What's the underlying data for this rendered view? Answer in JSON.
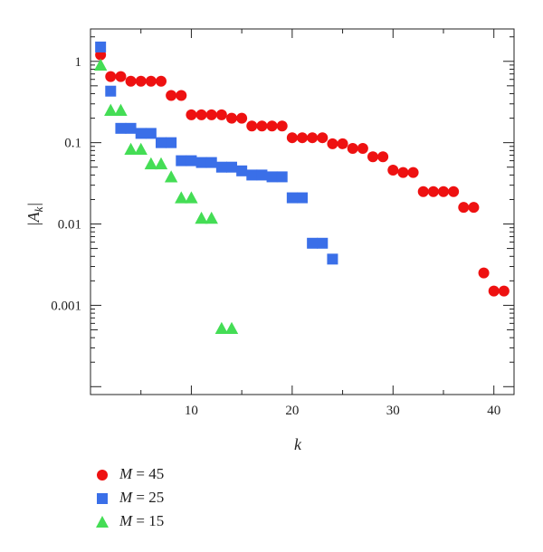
{
  "chart_data": {
    "type": "scatter",
    "xlabel": "k",
    "ylabel": "|A_k|",
    "xscale": "linear",
    "yscale": "log",
    "xlim": [
      0,
      42
    ],
    "ylim": [
      8e-05,
      2.5
    ],
    "x_ticks": [
      10,
      20,
      30,
      40
    ],
    "y_ticks": [
      0.001,
      0.01,
      0.1,
      1
    ],
    "y_tick_labels": [
      "0.001",
      "0.01",
      "0.1",
      "1"
    ],
    "grid": false,
    "legend_position": "bottom-left, below plot",
    "series": [
      {
        "name": "M = 45",
        "var": "M",
        "eq": " = ",
        "num": "45",
        "marker": "circle",
        "color": "#ee1111",
        "points": [
          [
            1,
            1.2
          ],
          [
            2,
            0.65
          ],
          [
            3,
            0.65
          ],
          [
            4,
            0.57
          ],
          [
            5,
            0.57
          ],
          [
            6,
            0.57
          ],
          [
            7,
            0.57
          ],
          [
            8,
            0.38
          ],
          [
            9,
            0.38
          ],
          [
            10,
            0.22
          ],
          [
            11,
            0.22
          ],
          [
            12,
            0.22
          ],
          [
            13,
            0.22
          ],
          [
            14,
            0.2
          ],
          [
            15,
            0.2
          ],
          [
            16,
            0.16
          ],
          [
            17,
            0.16
          ],
          [
            18,
            0.16
          ],
          [
            19,
            0.16
          ],
          [
            20,
            0.115
          ],
          [
            21,
            0.115
          ],
          [
            22,
            0.115
          ],
          [
            23,
            0.115
          ],
          [
            24,
            0.097
          ],
          [
            25,
            0.097
          ],
          [
            26,
            0.085
          ],
          [
            27,
            0.085
          ],
          [
            28,
            0.067
          ],
          [
            29,
            0.067
          ],
          [
            30,
            0.046
          ],
          [
            31,
            0.043
          ],
          [
            32,
            0.043
          ],
          [
            33,
            0.025
          ],
          [
            34,
            0.025
          ],
          [
            35,
            0.025
          ],
          [
            36,
            0.025
          ],
          [
            37,
            0.016
          ],
          [
            38,
            0.016
          ],
          [
            39,
            0.0025
          ],
          [
            40,
            0.0015
          ],
          [
            41,
            0.0015
          ]
        ]
      },
      {
        "name": "M = 25",
        "var": "M",
        "eq": " = ",
        "num": "25",
        "marker": "square",
        "color": "#3a6fe8",
        "points": [
          [
            1,
            1.5
          ],
          [
            2,
            0.43
          ],
          [
            3,
            0.15
          ],
          [
            4,
            0.15
          ],
          [
            5,
            0.13
          ],
          [
            6,
            0.13
          ],
          [
            7,
            0.1
          ],
          [
            8,
            0.1
          ],
          [
            9,
            0.06
          ],
          [
            10,
            0.06
          ],
          [
            11,
            0.057
          ],
          [
            12,
            0.057
          ],
          [
            13,
            0.05
          ],
          [
            14,
            0.05
          ],
          [
            15,
            0.045
          ],
          [
            16,
            0.04
          ],
          [
            17,
            0.04
          ],
          [
            18,
            0.038
          ],
          [
            19,
            0.038
          ],
          [
            20,
            0.021
          ],
          [
            21,
            0.021
          ],
          [
            22,
            0.0058
          ],
          [
            23,
            0.0058
          ],
          [
            24,
            0.0037
          ]
        ]
      },
      {
        "name": "M = 15",
        "var": "M",
        "eq": " = ",
        "num": "15",
        "marker": "triangle",
        "color": "#44dd55",
        "points": [
          [
            1,
            0.9
          ],
          [
            2,
            0.25
          ],
          [
            3,
            0.25
          ],
          [
            4,
            0.083
          ],
          [
            5,
            0.083
          ],
          [
            6,
            0.055
          ],
          [
            7,
            0.055
          ],
          [
            8,
            0.038
          ],
          [
            9,
            0.021
          ],
          [
            10,
            0.021
          ],
          [
            11,
            0.0118
          ],
          [
            12,
            0.0118
          ],
          [
            13,
            0.00052
          ],
          [
            14,
            0.00052
          ]
        ]
      }
    ]
  }
}
